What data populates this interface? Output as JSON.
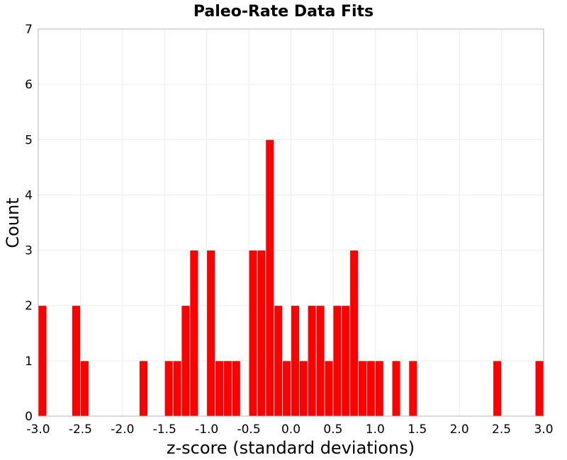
{
  "chart_data": {
    "type": "bar",
    "title": "Paleo-Rate Data Fits",
    "xlabel": "z-score (standard deviations)",
    "ylabel": "Count",
    "xlim": [
      -3.0,
      3.0
    ],
    "ylim": [
      0,
      7
    ],
    "bin_width": 0.1,
    "grid": true,
    "bar_color": "#ff0000",
    "x_ticks": [
      "-3.0",
      "-2.5",
      "-2.0",
      "-1.5",
      "-1.0",
      "-0.5",
      "0.0",
      "0.5",
      "1.0",
      "1.5",
      "2.0",
      "2.5",
      "3.0"
    ],
    "y_ticks": [
      "0",
      "1",
      "2",
      "3",
      "4",
      "5",
      "6",
      "7"
    ],
    "bins": [
      {
        "x": -2.95,
        "value": 2
      },
      {
        "x": -2.55,
        "value": 2
      },
      {
        "x": -2.45,
        "value": 1
      },
      {
        "x": -1.75,
        "value": 1
      },
      {
        "x": -1.45,
        "value": 1
      },
      {
        "x": -1.35,
        "value": 1
      },
      {
        "x": -1.25,
        "value": 2
      },
      {
        "x": -1.15,
        "value": 3
      },
      {
        "x": -0.95,
        "value": 3
      },
      {
        "x": -0.85,
        "value": 1
      },
      {
        "x": -0.75,
        "value": 1
      },
      {
        "x": -0.65,
        "value": 1
      },
      {
        "x": -0.45,
        "value": 3
      },
      {
        "x": -0.35,
        "value": 3
      },
      {
        "x": -0.25,
        "value": 5
      },
      {
        "x": -0.15,
        "value": 2
      },
      {
        "x": -0.05,
        "value": 1
      },
      {
        "x": 0.05,
        "value": 2
      },
      {
        "x": 0.15,
        "value": 1
      },
      {
        "x": 0.25,
        "value": 2
      },
      {
        "x": 0.35,
        "value": 2
      },
      {
        "x": 0.45,
        "value": 1
      },
      {
        "x": 0.55,
        "value": 2
      },
      {
        "x": 0.65,
        "value": 2
      },
      {
        "x": 0.75,
        "value": 3
      },
      {
        "x": 0.85,
        "value": 1
      },
      {
        "x": 0.95,
        "value": 1
      },
      {
        "x": 1.05,
        "value": 1
      },
      {
        "x": 1.25,
        "value": 1
      },
      {
        "x": 1.45,
        "value": 1
      },
      {
        "x": 2.45,
        "value": 1
      },
      {
        "x": 2.95,
        "value": 1
      }
    ]
  }
}
